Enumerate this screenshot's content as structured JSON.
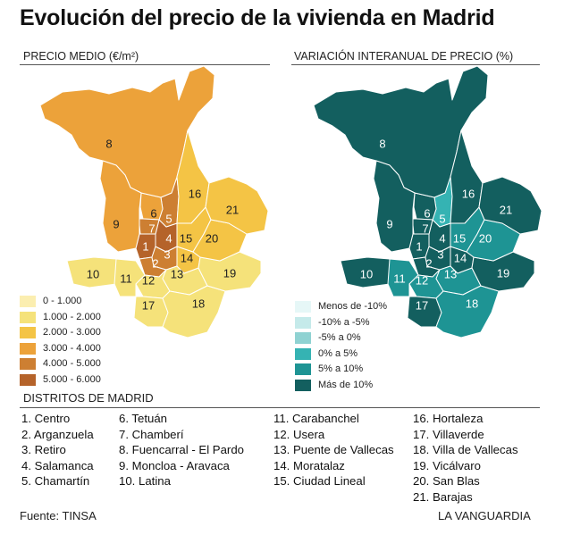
{
  "title": "Evolución del precio de la vivienda en Madrid",
  "left_map": {
    "heading": "PRECIO MEDIO (€/m²)",
    "legend": [
      {
        "label": "0 - 1.000",
        "color": "#fbeeb0"
      },
      {
        "label": "1.000 - 2.000",
        "color": "#f5e27a"
      },
      {
        "label": "2.000 - 3.000",
        "color": "#f4c445"
      },
      {
        "label": "3.000 - 4.000",
        "color": "#eca23a"
      },
      {
        "label": "4.000 - 5.000",
        "color": "#cd7f32"
      },
      {
        "label": "5.000 - 6.000",
        "color": "#b5632a"
      }
    ],
    "district_class": {
      "1": 5,
      "2": 4,
      "3": 4,
      "4": 5,
      "5": 4,
      "6": 3,
      "7": 4,
      "8": 3,
      "9": 3,
      "10": 1,
      "11": 1,
      "12": 1,
      "13": 1,
      "14": 2,
      "15": 2,
      "16": 2,
      "17": 1,
      "18": 1,
      "19": 1,
      "20": 2,
      "21": 2
    }
  },
  "right_map": {
    "heading": "VARIACIÓN INTERANUAL DE PRECIO (%)",
    "legend": [
      {
        "label": "Menos de -10%",
        "color": "#e6f7f7"
      },
      {
        "label": "-10% a -5%",
        "color": "#c5eaea"
      },
      {
        "label": "-5% a 0%",
        "color": "#8fd2d2"
      },
      {
        "label": "0% a 5%",
        "color": "#35b3b3"
      },
      {
        "label": "5% a 10%",
        "color": "#1e9494"
      },
      {
        "label": "Más de 10%",
        "color": "#135f5f"
      }
    ],
    "district_class": {
      "1": 5,
      "2": 5,
      "3": 5,
      "4": 5,
      "5": 3,
      "6": 5,
      "7": 5,
      "8": 5,
      "9": 5,
      "10": 5,
      "11": 4,
      "12": 4,
      "13": 4,
      "14": 5,
      "15": 4,
      "16": 5,
      "17": 5,
      "18": 4,
      "19": 5,
      "20": 4,
      "21": 5
    }
  },
  "districts_heading": "DISTRITOS DE MADRID",
  "districts": [
    "1. Centro",
    "2. Arganzuela",
    "3. Retiro",
    "4. Salamanca",
    "5. Chamartín",
    "6. Tetuán",
    "7. Chamberí",
    "8. Fuencarral - El Pardo",
    "9. Moncloa - Aravaca",
    "10. Latina",
    "11. Carabanchel",
    "12. Usera",
    "13. Puente de Vallecas",
    "14. Moratalaz",
    "15. Ciudad Lineal",
    "16. Hortaleza",
    "17. Villaverde",
    "18. Villa de Vallecas",
    "19. Vicálvaro",
    "20. San Blas",
    "21. Barajas"
  ],
  "footer": {
    "source": "Fuente: TINSA",
    "brand": "LA VANGUARDIA"
  }
}
